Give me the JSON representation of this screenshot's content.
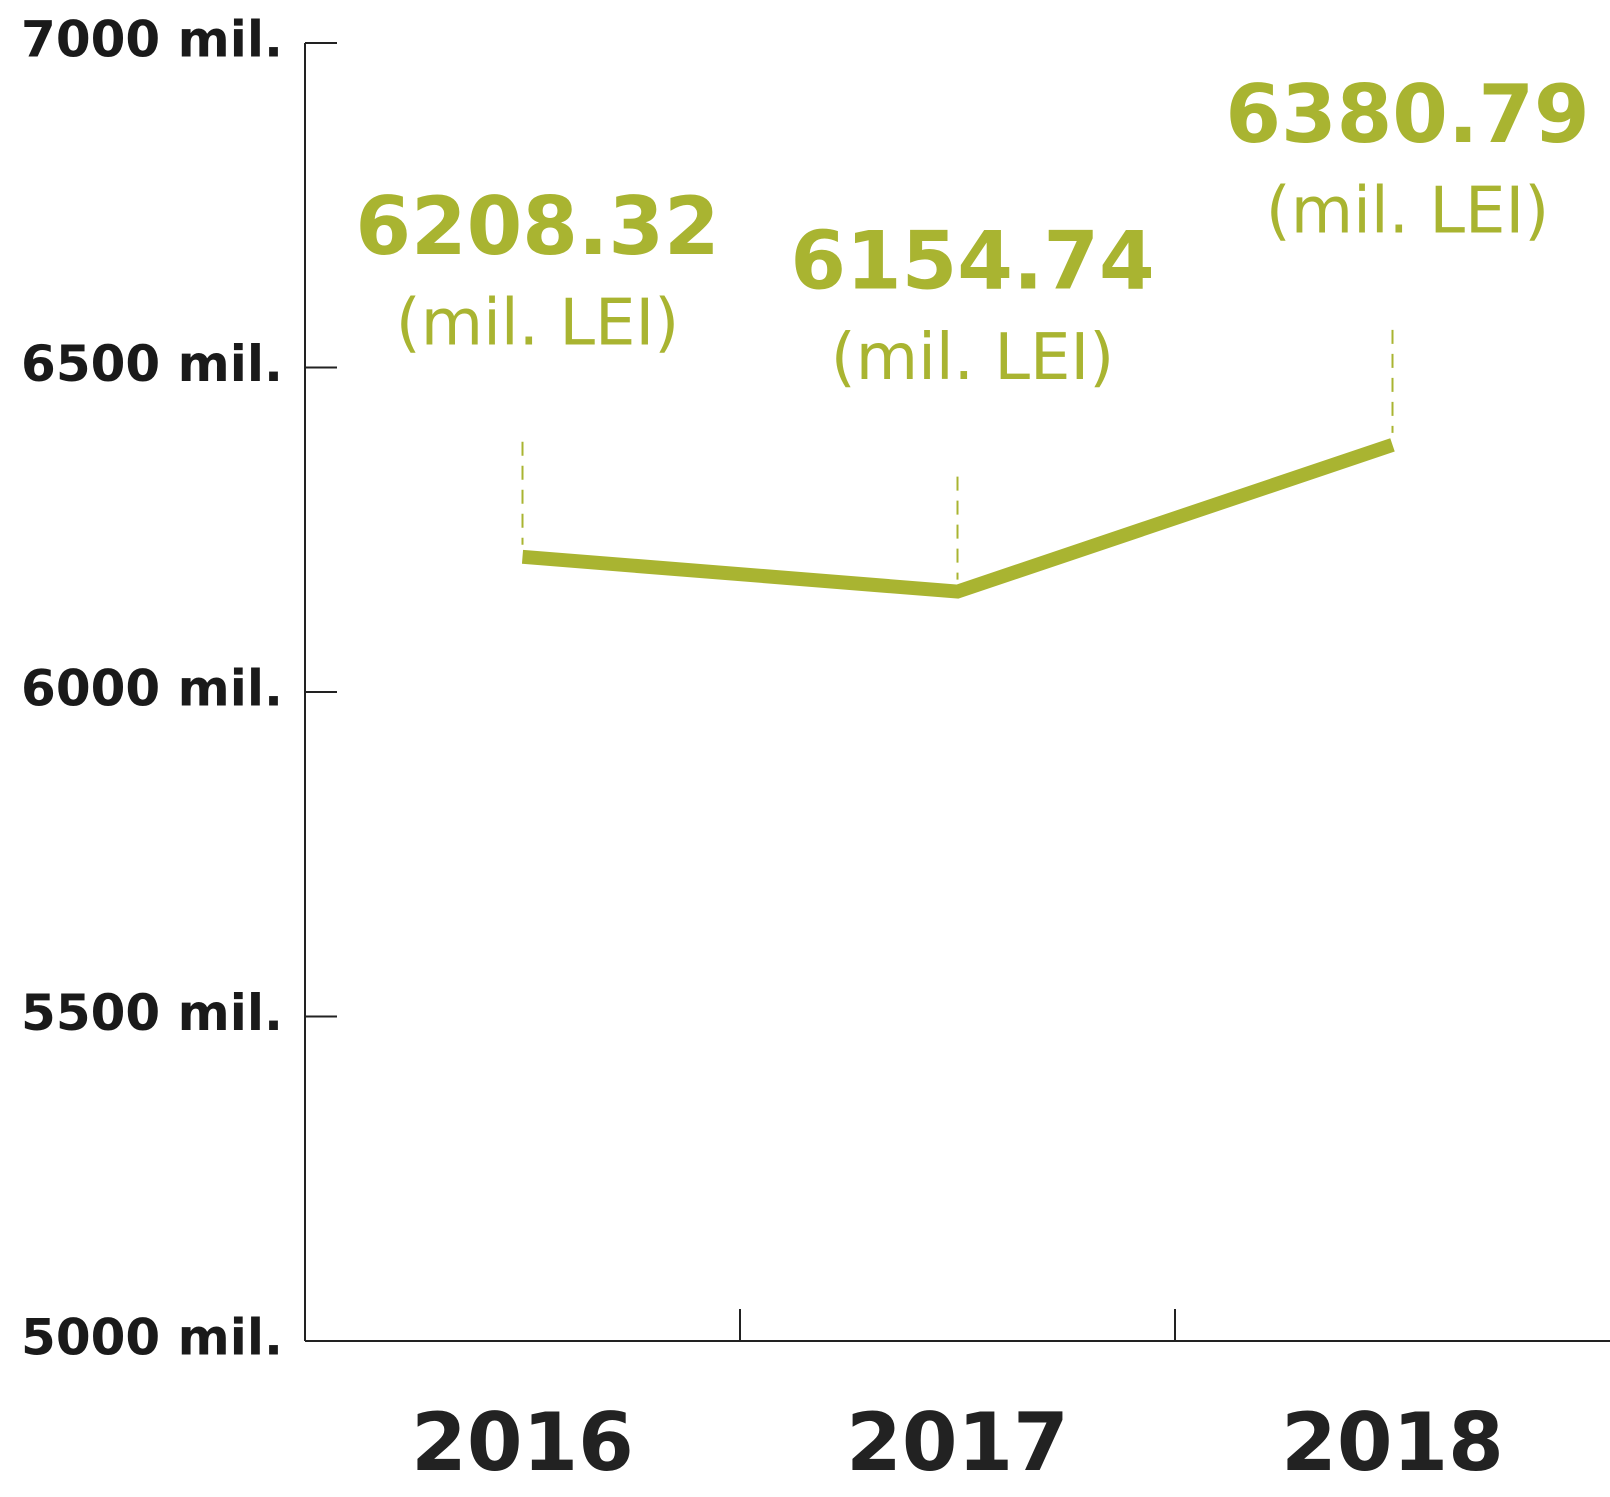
{
  "chart_data": {
    "type": "line",
    "categories": [
      "2016",
      "2017",
      "2018"
    ],
    "series": [
      {
        "color": "#a9b431",
        "values": [
          6208.32,
          6154.74,
          6380.79
        ]
      }
    ],
    "unit_label": "(mil. LEI)",
    "ylim": [
      5000,
      7000
    ],
    "yticks": [
      {
        "value": 5000,
        "label": "5000 mil."
      },
      {
        "value": 5500,
        "label": "5500 mil."
      },
      {
        "value": 6000,
        "label": "6000 mil."
      },
      {
        "value": 6500,
        "label": "6500 mil."
      },
      {
        "value": 7000,
        "label": "7000 mil."
      }
    ],
    "grid": false
  }
}
